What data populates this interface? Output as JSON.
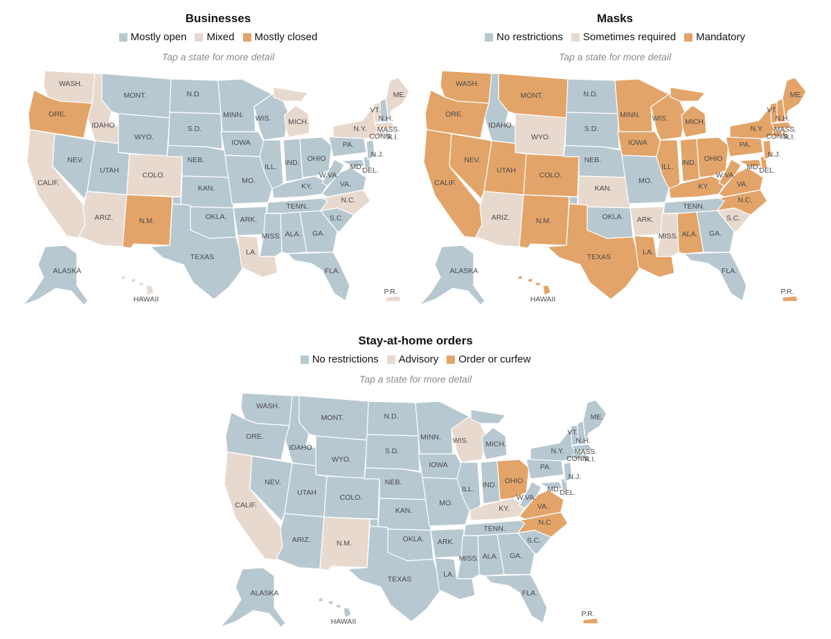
{
  "colors": {
    "c0": "#b7c8d1",
    "c1": "#e8d9cf",
    "c2": "#e3a469"
  },
  "maps": [
    {
      "id": "businesses",
      "title": "Businesses",
      "legend": [
        "Mostly open",
        "Mixed",
        "Mostly closed"
      ],
      "hint": "Tap a state for more detail",
      "status": {
        "WA": 1,
        "OR": 2,
        "CA": 1,
        "NV": 0,
        "ID": 1,
        "MT": 0,
        "WY": 0,
        "UT": 0,
        "CO": 1,
        "AZ": 1,
        "NM": 2,
        "ND": 0,
        "SD": 0,
        "NE": 0,
        "KS": 0,
        "OK": 0,
        "TX": 0,
        "MN": 0,
        "IA": 0,
        "MO": 0,
        "AR": 0,
        "LA": 1,
        "WI": 0,
        "IL": 0,
        "MI": 1,
        "IN": 0,
        "OH": 0,
        "KY": 0,
        "TN": 0,
        "MS": 0,
        "AL": 0,
        "GA": 0,
        "FL": 0,
        "SC": 0,
        "NC": 1,
        "VA": 0,
        "WV": 0,
        "MD": 0,
        "DE": 0,
        "PA": 0,
        "NJ": 0,
        "NY": 1,
        "CT": 1,
        "RI": 1,
        "MA": 1,
        "VT": 1,
        "NH": 0,
        "ME": 1,
        "AK": 0,
        "HI": 1,
        "PR": 1
      }
    },
    {
      "id": "masks",
      "title": "Masks",
      "legend": [
        "No restrictions",
        "Sometimes required",
        "Mandatory"
      ],
      "hint": "Tap a state for more detail",
      "status": {
        "WA": 2,
        "OR": 2,
        "CA": 2,
        "NV": 2,
        "ID": 0,
        "MT": 2,
        "WY": 1,
        "UT": 2,
        "CO": 2,
        "AZ": 1,
        "NM": 2,
        "ND": 0,
        "SD": 0,
        "NE": 0,
        "KS": 1,
        "OK": 0,
        "TX": 2,
        "MN": 2,
        "IA": 2,
        "MO": 0,
        "AR": 1,
        "LA": 2,
        "WI": 2,
        "IL": 2,
        "MI": 2,
        "IN": 2,
        "OH": 2,
        "KY": 2,
        "TN": 0,
        "MS": 1,
        "AL": 2,
        "GA": 0,
        "FL": 0,
        "SC": 1,
        "NC": 2,
        "VA": 2,
        "WV": 2,
        "MD": 2,
        "DE": 2,
        "PA": 2,
        "NJ": 2,
        "NY": 2,
        "CT": 2,
        "RI": 2,
        "MA": 2,
        "VT": 2,
        "NH": 2,
        "ME": 2,
        "AK": 0,
        "HI": 2,
        "PR": 2
      }
    },
    {
      "id": "stay-at-home",
      "title": "Stay-at-home orders",
      "legend": [
        "No restrictions",
        "Advisory",
        "Order or curfew"
      ],
      "hint": "Tap a state for more detail",
      "status": {
        "WA": 0,
        "OR": 0,
        "CA": 1,
        "NV": 0,
        "ID": 0,
        "MT": 0,
        "WY": 0,
        "UT": 0,
        "CO": 0,
        "AZ": 0,
        "NM": 1,
        "ND": 0,
        "SD": 0,
        "NE": 0,
        "KS": 0,
        "OK": 0,
        "TX": 0,
        "MN": 0,
        "IA": 0,
        "MO": 0,
        "AR": 0,
        "LA": 0,
        "WI": 1,
        "IL": 0,
        "MI": 0,
        "IN": 0,
        "OH": 2,
        "KY": 1,
        "TN": 0,
        "MS": 0,
        "AL": 0,
        "GA": 0,
        "FL": 0,
        "SC": 0,
        "NC": 2,
        "VA": 2,
        "WV": 0,
        "MD": 0,
        "DE": 0,
        "PA": 0,
        "NJ": 0,
        "NY": 0,
        "CT": 0,
        "RI": 0,
        "MA": 0,
        "VT": 0,
        "NH": 0,
        "ME": 0,
        "AK": 0,
        "HI": 0,
        "PR": 2
      }
    }
  ],
  "labels": {
    "WA": "WASH.",
    "OR": "ORE.",
    "CA": "CALIF.",
    "NV": "NEV.",
    "ID": "IDAHO",
    "MT": "MONT.",
    "WY": "WYO.",
    "UT": "UTAH",
    "CO": "COLO.",
    "AZ": "ARIZ.",
    "NM": "N.M.",
    "ND": "N.D.",
    "SD": "S.D.",
    "NE": "NEB.",
    "KS": "KAN.",
    "OK": "OKLA.",
    "TX": "TEXAS",
    "MN": "MINN.",
    "IA": "IOWA",
    "MO": "MO.",
    "AR": "ARK.",
    "LA": "LA.",
    "WI": "WIS.",
    "IL": "ILL.",
    "MI": "MICH.",
    "IN": "IND.",
    "OH": "OHIO",
    "KY": "KY.",
    "TN": "TENN.",
    "MS": "MISS.",
    "AL": "ALA.",
    "GA": "GA.",
    "FL": "FLA.",
    "SC": "S.C.",
    "NC": "N.C.",
    "VA": "VA.",
    "WV": "W.VA.",
    "MD": "MD.",
    "DE": "DEL.",
    "PA": "PA.",
    "NJ": "N.J.",
    "NY": "N.Y.",
    "CT": "CONN.",
    "RI": "R.I.",
    "MA": "MASS.",
    "VT": "VT.",
    "NH": "N.H.",
    "ME": "ME.",
    "AK": "ALASKA",
    "HI": "HAWAII",
    "PR": "P.R."
  }
}
